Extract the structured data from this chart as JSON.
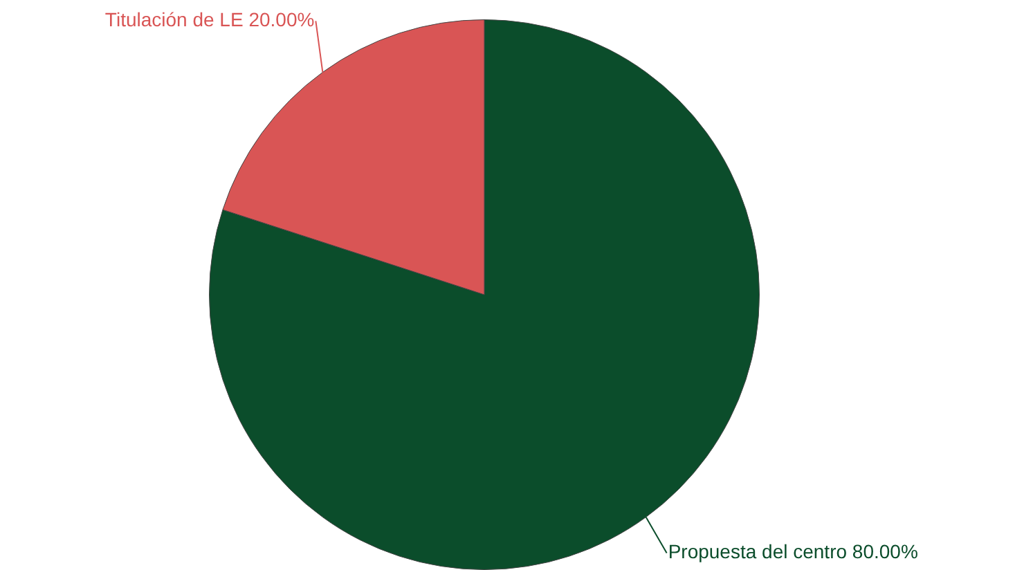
{
  "chart_data": {
    "type": "pie",
    "categories": [
      "Propuesta del centro",
      "Titulación de LE"
    ],
    "values": [
      80,
      20
    ],
    "colors": [
      "#0b4d2b",
      "#d95555"
    ],
    "value_labels": [
      "80.00%",
      "20.00%"
    ],
    "legend": false
  }
}
